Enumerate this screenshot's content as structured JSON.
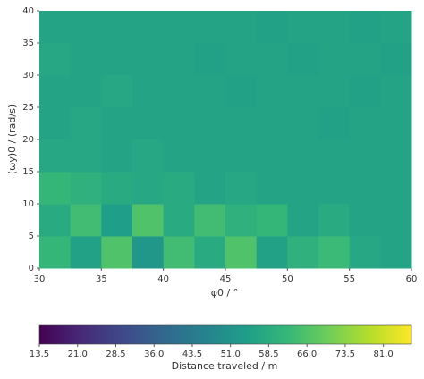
{
  "chart_data": {
    "type": "heatmap",
    "colormap": "viridis",
    "xlabel": "φ0 / °",
    "ylabel": "(ωy)0 / (rad/s)",
    "xbins": [
      30,
      32.5,
      35,
      37.5,
      40,
      42.5,
      45,
      47.5,
      50,
      52.5,
      55,
      57.5,
      60
    ],
    "ybins": [
      0,
      5,
      10,
      15,
      20,
      25,
      30,
      35,
      40
    ],
    "z": [
      [
        62,
        55,
        66,
        52,
        64,
        58,
        66,
        55,
        60,
        63,
        57,
        56
      ],
      [
        58,
        64,
        54,
        66,
        58,
        64,
        60,
        62,
        56,
        58,
        56,
        56
      ],
      [
        62,
        60,
        58,
        57,
        58,
        56,
        57,
        56,
        56,
        56,
        56,
        56
      ],
      [
        57,
        57,
        56,
        57,
        56,
        56,
        56,
        56,
        56,
        56,
        56,
        56
      ],
      [
        56,
        57,
        56,
        56,
        56,
        56,
        56,
        56,
        56,
        55,
        56,
        56
      ],
      [
        56,
        56,
        57,
        56,
        56,
        56,
        55,
        56,
        56,
        56,
        55,
        56
      ],
      [
        57,
        56,
        56,
        56,
        56,
        55,
        56,
        56,
        55,
        56,
        56,
        55
      ],
      [
        56,
        56,
        56,
        56,
        56,
        56,
        56,
        55,
        56,
        56,
        55,
        56
      ]
    ],
    "xlim": [
      30,
      60
    ],
    "ylim": [
      0,
      40
    ],
    "xticks": [
      30,
      35,
      40,
      45,
      50,
      55,
      60
    ],
    "yticks": [
      0,
      5,
      10,
      15,
      20,
      25,
      30,
      35,
      40
    ],
    "colorbar_label": "Distance traveled / m",
    "clim": [
      13.5,
      86.5
    ],
    "cticks": [
      13.5,
      {
        "value": 21,
        "label": "21.0"
      },
      28.5,
      {
        "value": 36,
        "label": "36.0"
      },
      43.5,
      {
        "value": 51,
        "label": "51.0"
      },
      58.5,
      {
        "value": 66,
        "label": "66.0"
      },
      73.5,
      {
        "value": 81,
        "label": "81.0"
      }
    ]
  }
}
